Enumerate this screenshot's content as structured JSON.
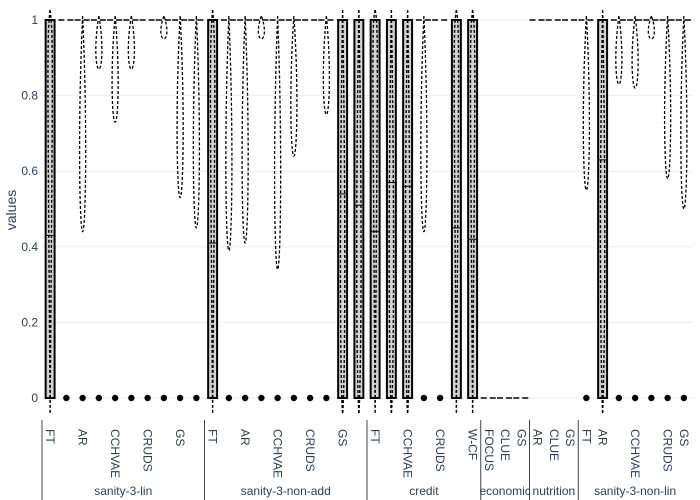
{
  "chart_data": {
    "type": "box",
    "title": "",
    "xlabel": "",
    "ylabel": "values",
    "ylim": [
      0,
      1
    ],
    "yticks": [
      0,
      0.2,
      0.4,
      0.6,
      0.8,
      1
    ],
    "ytick_labels": [
      "0",
      "0.2",
      "0.4",
      "0.6",
      "0.8",
      "1"
    ],
    "grid": true,
    "colors": {
      "box_fill": "#d3d3d3",
      "box_line": "#000000",
      "grid": "#eeeeee",
      "axis_text": "#2a3f5f"
    },
    "groups": [
      {
        "name": "sanity-3-lin",
        "items": [
          {
            "label": "FT",
            "kind": "box",
            "q1": 0.0,
            "median": 0.43,
            "q3": 1.0,
            "mean": 0.43,
            "violin_peak": 0.92
          },
          {
            "label": "",
            "kind": "outlier"
          },
          {
            "label": "AR",
            "kind": "outlier",
            "violin_peak": 0.44
          },
          {
            "label": "",
            "kind": "outlier",
            "violin_peak": 0.87
          },
          {
            "label": "CCHVAE",
            "kind": "outlier",
            "violin_peak": 0.73
          },
          {
            "label": "",
            "kind": "outlier",
            "violin_peak": 0.87
          },
          {
            "label": "CRUDS",
            "kind": "none"
          },
          {
            "label": "",
            "kind": "outlier",
            "violin_peak": 0.95
          },
          {
            "label": "GS",
            "kind": "outlier",
            "violin_peak": 0.53
          },
          {
            "label": "",
            "kind": "outlier",
            "violin_peak": 0.45
          }
        ]
      },
      {
        "name": "sanity-3-non-add",
        "items": [
          {
            "label": "FT",
            "kind": "box",
            "q1": 0.0,
            "median": 0.41,
            "q3": 1.0,
            "mean": 0.41,
            "violin_peak": 0.86
          },
          {
            "label": "",
            "kind": "outlier",
            "violin_peak": 0.39
          },
          {
            "label": "AR",
            "kind": "outlier",
            "violin_peak": 0.41
          },
          {
            "label": "",
            "kind": "outlier",
            "violin_peak": 0.95
          },
          {
            "label": "CCHVAE",
            "kind": "outlier",
            "violin_peak": 0.34
          },
          {
            "label": "",
            "kind": "outlier",
            "violin_peak": 0.64
          },
          {
            "label": "CRUDS",
            "kind": "none"
          },
          {
            "label": "",
            "kind": "outlier",
            "violin_peak": 0.75
          },
          {
            "label": "GS",
            "kind": "box",
            "q1": 0.0,
            "median": 0.54,
            "q3": 1.0,
            "mean": 0.54,
            "violin_peak": 0.04
          },
          {
            "label": "",
            "kind": "box",
            "q1": 0.0,
            "median": 0.51,
            "q3": 1.0,
            "mean": 0.51,
            "violin_peak": 0.08
          }
        ]
      },
      {
        "name": "credit",
        "items": [
          {
            "label": "FT",
            "kind": "box",
            "q1": 0.0,
            "median": 0.44,
            "q3": 1.0,
            "mean": 0.44,
            "violin_peak": 0.97
          },
          {
            "label": "",
            "kind": "box",
            "q1": 0.0,
            "median": 0.57,
            "q3": 1.0,
            "mean": 0.57,
            "violin_peak": 0.07
          },
          {
            "label": "CCHVAE",
            "kind": "box",
            "q1": 0.0,
            "median": 0.56,
            "q3": 1.0,
            "mean": 0.56,
            "violin_peak": 0.07
          },
          {
            "label": "",
            "kind": "outlier",
            "violin_peak": 0.44
          },
          {
            "label": "CRUDS",
            "kind": "none"
          },
          {
            "label": "",
            "kind": "box",
            "q1": 0.0,
            "median": 0.45,
            "q3": 1.0,
            "mean": 0.45,
            "violin_peak": 0.95
          },
          {
            "label": "W-CF",
            "kind": "box",
            "q1": 0.0,
            "median": 0.42,
            "q3": 1.0,
            "mean": 0.42,
            "violin_peak": 0.92
          }
        ]
      },
      {
        "name": "economic",
        "items": [
          {
            "label": "FOCUS",
            "kind": "line"
          },
          {
            "label": "CLUE",
            "kind": "line"
          },
          {
            "label": "GS",
            "kind": "line"
          }
        ]
      },
      {
        "name": "nutrition",
        "items": [
          {
            "label": "AR",
            "kind": "top"
          },
          {
            "label": "CLUE",
            "kind": "top"
          },
          {
            "label": "GS",
            "kind": "top"
          }
        ]
      },
      {
        "name": "sanity-3-non-lin",
        "items": [
          {
            "label": "FT",
            "kind": "outlier",
            "violin_peak": 0.55
          },
          {
            "label": "AR",
            "kind": "box",
            "q1": 0.0,
            "median": 0.63,
            "q3": 1.0,
            "mean": 0.63,
            "violin_peak": 0.16
          },
          {
            "label": "",
            "kind": "outlier",
            "violin_peak": 0.83
          },
          {
            "label": "CCHVAE",
            "kind": "outlier",
            "violin_peak": 0.82
          },
          {
            "label": "",
            "kind": "outlier",
            "violin_peak": 0.95
          },
          {
            "label": "CRUDS",
            "kind": "outlier",
            "violin_peak": 0.58
          },
          {
            "label": "GS",
            "kind": "outlier",
            "violin_peak": 0.5
          }
        ]
      }
    ]
  }
}
